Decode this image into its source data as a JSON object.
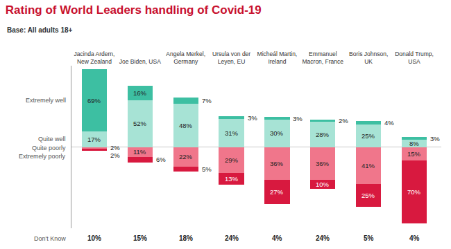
{
  "chart_data": {
    "type": "bar",
    "title": "Rating of World Leaders handling of Covid-19",
    "subtitle": "Base: All adults 18+",
    "categories": [
      "Jacinda Ardern, New Zealand",
      "Joe Biden, USA",
      "Angela Merkel, Germany",
      "Ursula von der Leyen, EU",
      "Micheál Martin, Ireland",
      "Emmanuel Macron, France",
      "Boris Johnson, UK",
      "Donald Trump, USA"
    ],
    "series": [
      {
        "name": "Quite well",
        "color": "#a7e3d5",
        "values": [
          17,
          52,
          48,
          31,
          30,
          28,
          25,
          8
        ],
        "value_labels": [
          "17%",
          "52%",
          "48%",
          "31%",
          "30%",
          "28%",
          "25%",
          "8%"
        ]
      },
      {
        "name": "Extremely well",
        "color": "#3dbfa2",
        "values": [
          69,
          16,
          7,
          3,
          3,
          2,
          4,
          3
        ],
        "value_labels": [
          "69%",
          "16%",
          "7%",
          "3%",
          "3%",
          "2%",
          "4%",
          "3%"
        ]
      },
      {
        "name": "Quite poorly",
        "color": "#f0768b",
        "axis": "y2",
        "values": [
          2,
          11,
          22,
          29,
          36,
          36,
          41,
          15
        ],
        "value_labels": [
          "2%",
          "11%",
          "22%",
          "29%",
          "36%",
          "36%",
          "41%",
          "15%"
        ]
      },
      {
        "name": "Extremely poorly",
        "color": "#d8193f",
        "axis": "y2",
        "values": [
          2,
          6,
          5,
          13,
          27,
          10,
          25,
          70
        ],
        "value_labels": [
          "2%",
          "6%",
          "5%",
          "13%",
          "27%",
          "10%",
          "25%",
          "70%"
        ]
      }
    ],
    "dont_know": {
      "label": "Don't Know",
      "values": [
        10,
        15,
        18,
        24,
        4,
        24,
        5,
        4
      ],
      "value_labels": [
        "10%",
        "15%",
        "18%",
        "24%",
        "4%",
        "24%",
        "5%",
        "4%"
      ]
    },
    "ylim": [
      -90,
      90
    ],
    "y2lim": [
      90,
      -90
    ],
    "stacked": true,
    "data_labels": true,
    "tick_labels": "x",
    "grid": false
  }
}
